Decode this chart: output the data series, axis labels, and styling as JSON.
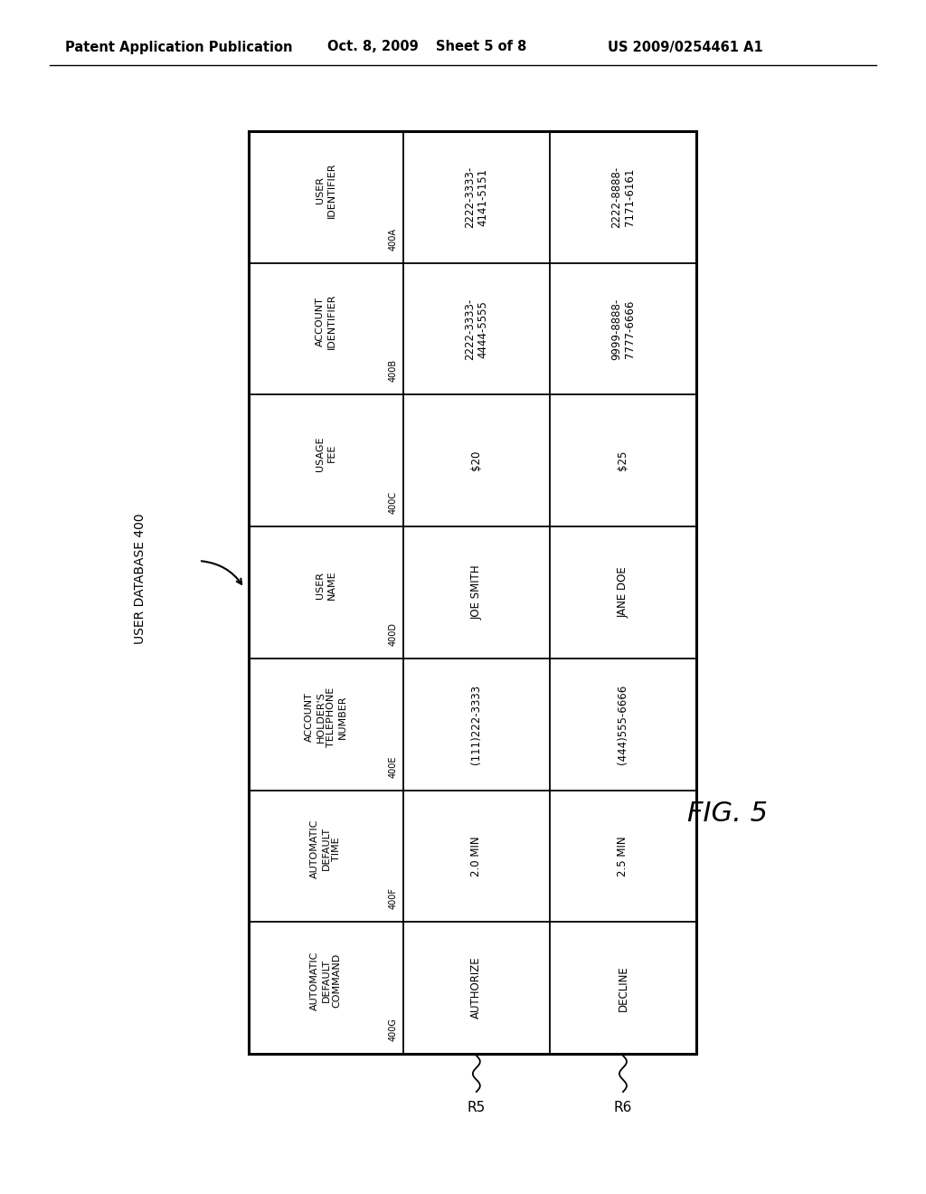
{
  "header_text": "Patent Application Publication",
  "date_text": "Oct. 8, 2009",
  "sheet_text": "Sheet 5 of 8",
  "patent_text": "US 2009/0254461 A1",
  "fig_label": "FIG. 5",
  "db_label": "USER DATABASE 400",
  "rows": [
    {
      "id": "400A",
      "header": "USER\nIDENTIFIER",
      "cells": [
        "2222-3333-\n4141-5151",
        "2222-8888-\n7171-6161"
      ]
    },
    {
      "id": "400B",
      "header": "ACCOUNT\nIDENTIFIER",
      "cells": [
        "2222-3333-\n4444-5555",
        "9999-8888-\n7777-6666"
      ]
    },
    {
      "id": "400C",
      "header": "USAGE\nFEE",
      "cells": [
        "$20",
        "$25"
      ]
    },
    {
      "id": "400D",
      "header": "USER\nNAME",
      "cells": [
        "JOE SMITH",
        "JANE DOE"
      ]
    },
    {
      "id": "400E",
      "header": "ACCOUNT\nHOLDER'S\nTELEPHONE\nNUMBER",
      "cells": [
        "(111)222-3333",
        "(444)555-6666"
      ]
    },
    {
      "id": "400F",
      "header": "AUTOMATIC\nDEFAULT\nTIME",
      "cells": [
        "2.0 MIN",
        "2.5 MIN"
      ]
    },
    {
      "id": "400G",
      "header": "AUTOMATIC\nDEFAULT\nCOMMAND",
      "cells": [
        "AUTHORIZE",
        "DECLINE"
      ]
    }
  ],
  "col_labels": [
    "R5",
    "R6"
  ],
  "background_color": "#ffffff",
  "text_color": "#000000"
}
